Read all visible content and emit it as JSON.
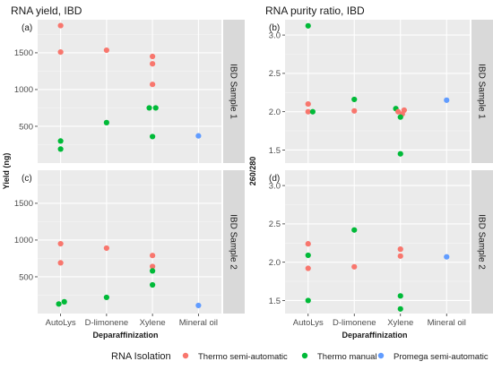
{
  "legend": {
    "title": "RNA Isolation",
    "entries": [
      {
        "label": "Thermo semi-automatic",
        "color": "#F8766D"
      },
      {
        "label": "Thermo manual",
        "color": "#00BA38"
      },
      {
        "label": "Promega semi-automatic",
        "color": "#619CFF"
      }
    ]
  },
  "chart_data": [
    {
      "type": "scatter",
      "title": "RNA yield, IBD",
      "ylabel": "Yield (ng)",
      "xlabel": "Deparaffinization",
      "categories": [
        "AutoLys",
        "D-limonene",
        "Xylene",
        "Mineral oil"
      ],
      "grid": true,
      "panels": [
        {
          "tag": "(a)",
          "strip": "IBD Sample 1",
          "ylim": [
            0,
            1950
          ],
          "yticks": [
            500,
            1000,
            1500
          ],
          "ytick_labels": [
            "500",
            "1000",
            "1500"
          ],
          "points": [
            {
              "category": "AutoLys",
              "value": 1870,
              "series": "Thermo semi-automatic"
            },
            {
              "category": "AutoLys",
              "value": 1510,
              "series": "Thermo semi-automatic"
            },
            {
              "category": "AutoLys",
              "value": 300,
              "series": "Thermo manual"
            },
            {
              "category": "AutoLys",
              "value": 190,
              "series": "Thermo manual"
            },
            {
              "category": "D-limonene",
              "value": 1535,
              "series": "Thermo semi-automatic"
            },
            {
              "category": "D-limonene",
              "value": 550,
              "series": "Thermo manual"
            },
            {
              "category": "Xylene",
              "value": 1450,
              "series": "Thermo semi-automatic"
            },
            {
              "category": "Xylene",
              "value": 1350,
              "series": "Thermo semi-automatic"
            },
            {
              "category": "Xylene",
              "value": 1070,
              "series": "Thermo semi-automatic"
            },
            {
              "category": "Xylene",
              "value": 750,
              "series": "Thermo manual",
              "dx": -0.07
            },
            {
              "category": "Xylene",
              "value": 750,
              "series": "Thermo manual",
              "dx": 0.07
            },
            {
              "category": "Xylene",
              "value": 360,
              "series": "Thermo manual"
            },
            {
              "category": "Mineral oil",
              "value": 370,
              "series": "Promega semi-automatic"
            }
          ]
        },
        {
          "tag": "(c)",
          "strip": "IBD Sample 2",
          "ylim": [
            0,
            1950
          ],
          "yticks": [
            500,
            1000,
            1500
          ],
          "ytick_labels": [
            "500",
            "1000",
            "1500"
          ],
          "points": [
            {
              "category": "AutoLys",
              "value": 950,
              "series": "Thermo semi-automatic"
            },
            {
              "category": "AutoLys",
              "value": 690,
              "series": "Thermo semi-automatic"
            },
            {
              "category": "AutoLys",
              "value": 160,
              "series": "Thermo manual",
              "dx": 0.08
            },
            {
              "category": "AutoLys",
              "value": 130,
              "series": "Thermo manual",
              "dx": -0.04
            },
            {
              "category": "D-limonene",
              "value": 890,
              "series": "Thermo semi-automatic"
            },
            {
              "category": "D-limonene",
              "value": 220,
              "series": "Thermo manual"
            },
            {
              "category": "Xylene",
              "value": 790,
              "series": "Thermo semi-automatic"
            },
            {
              "category": "Xylene",
              "value": 640,
              "series": "Thermo semi-automatic"
            },
            {
              "category": "Xylene",
              "value": 580,
              "series": "Thermo manual"
            },
            {
              "category": "Xylene",
              "value": 390,
              "series": "Thermo manual"
            },
            {
              "category": "Mineral oil",
              "value": 110,
              "series": "Promega semi-automatic"
            }
          ]
        }
      ]
    },
    {
      "type": "scatter",
      "title": "RNA purity ratio, IBD",
      "ylabel": "260/280",
      "xlabel": "Deparaffinization",
      "categories": [
        "AutoLys",
        "D-limonene",
        "Xylene",
        "Mineral oil"
      ],
      "grid": true,
      "panels": [
        {
          "tag": "(b)",
          "strip": "IBD Sample 1",
          "ylim": [
            1.33,
            3.2
          ],
          "yticks": [
            1.5,
            2.0,
            2.5,
            3.0
          ],
          "ytick_labels": [
            "1.5",
            "2.0",
            "2.5",
            "3.0"
          ],
          "points": [
            {
              "category": "AutoLys",
              "value": 3.12,
              "series": "Thermo manual"
            },
            {
              "category": "AutoLys",
              "value": 2.1,
              "series": "Thermo semi-automatic"
            },
            {
              "category": "AutoLys",
              "value": 2.0,
              "series": "Thermo semi-automatic"
            },
            {
              "category": "AutoLys",
              "value": 2.0,
              "series": "Thermo manual",
              "dx": 0.1
            },
            {
              "category": "D-limonene",
              "value": 2.16,
              "series": "Thermo manual"
            },
            {
              "category": "D-limonene",
              "value": 2.01,
              "series": "Thermo semi-automatic"
            },
            {
              "category": "Xylene",
              "value": 2.04,
              "series": "Thermo manual",
              "dx": -0.1
            },
            {
              "category": "Xylene",
              "value": 2.02,
              "series": "Thermo semi-automatic",
              "dx": 0.08
            },
            {
              "category": "Xylene",
              "value": 2.0,
              "series": "Thermo semi-automatic",
              "dx": -0.05
            },
            {
              "category": "Xylene",
              "value": 1.97,
              "series": "Thermo semi-automatic",
              "dx": 0.04
            },
            {
              "category": "Xylene",
              "value": 1.93,
              "series": "Thermo manual"
            },
            {
              "category": "Xylene",
              "value": 1.45,
              "series": "Thermo manual"
            },
            {
              "category": "Mineral oil",
              "value": 2.15,
              "series": "Promega semi-automatic"
            }
          ]
        },
        {
          "tag": "(d)",
          "strip": "IBD Sample 2",
          "ylim": [
            1.33,
            3.2
          ],
          "yticks": [
            1.5,
            2.0,
            2.5,
            3.0
          ],
          "ytick_labels": [
            "1.5",
            "2.0",
            "2.5",
            "3.0"
          ],
          "points": [
            {
              "category": "AutoLys",
              "value": 2.24,
              "series": "Thermo semi-automatic"
            },
            {
              "category": "AutoLys",
              "value": 2.09,
              "series": "Thermo manual"
            },
            {
              "category": "AutoLys",
              "value": 1.92,
              "series": "Thermo semi-automatic"
            },
            {
              "category": "AutoLys",
              "value": 1.5,
              "series": "Thermo manual"
            },
            {
              "category": "D-limonene",
              "value": 2.42,
              "series": "Thermo manual"
            },
            {
              "category": "D-limonene",
              "value": 1.94,
              "series": "Thermo semi-automatic"
            },
            {
              "category": "Xylene",
              "value": 2.17,
              "series": "Thermo semi-automatic"
            },
            {
              "category": "Xylene",
              "value": 2.08,
              "series": "Thermo semi-automatic"
            },
            {
              "category": "Xylene",
              "value": 1.56,
              "series": "Thermo manual"
            },
            {
              "category": "Xylene",
              "value": 1.39,
              "series": "Thermo manual"
            },
            {
              "category": "Mineral oil",
              "value": 2.07,
              "series": "Promega semi-automatic"
            }
          ]
        }
      ]
    }
  ]
}
